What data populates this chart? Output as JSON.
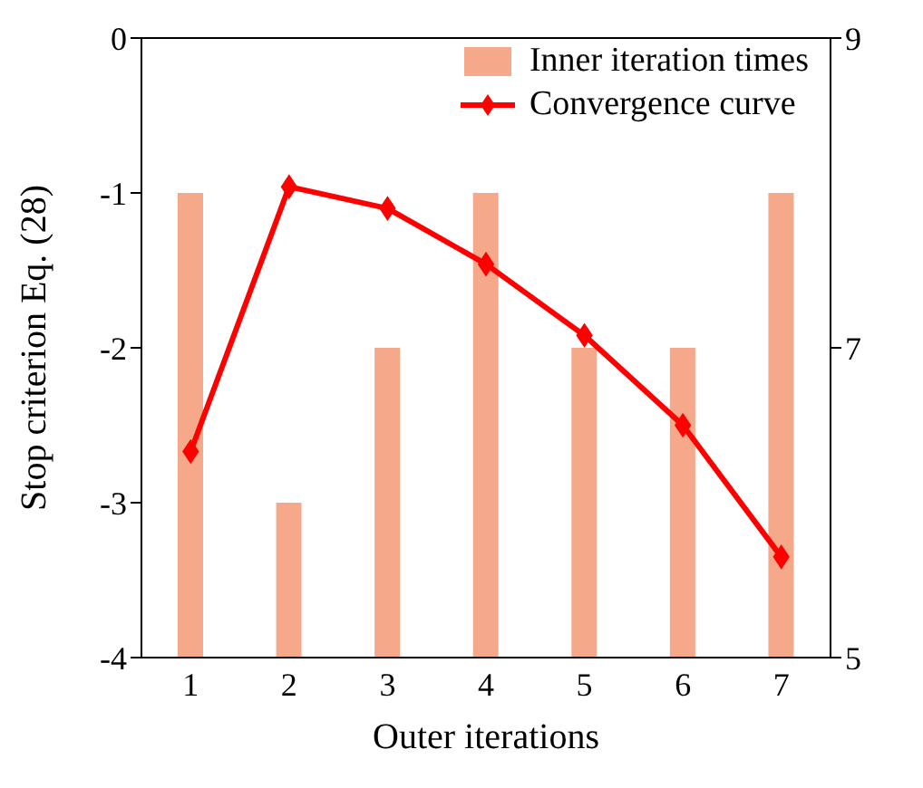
{
  "chart_data": {
    "type": "bar",
    "xlabel": "Outer iterations",
    "ylabel": "Stop criterion Eq. (28)",
    "categories": [
      "1",
      "2",
      "3",
      "4",
      "5",
      "6",
      "7"
    ],
    "series": [
      {
        "name": "Inner iteration times",
        "axis": "y2",
        "color": "#f5a88a",
        "values": [
          8,
          6,
          7,
          8,
          7,
          7,
          8
        ]
      },
      {
        "name": "Convergence curve",
        "type": "line",
        "color": "#ff0000",
        "values": [
          -2.67,
          -0.96,
          -1.1,
          -1.46,
          -1.92,
          -2.5,
          -3.35
        ]
      }
    ],
    "ylim": [
      -4,
      0
    ],
    "yticks": [
      -4,
      -3,
      -2,
      -1,
      0
    ],
    "y2lim": [
      5,
      9
    ],
    "y2ticks": [
      5,
      7,
      9
    ],
    "legend": "top right",
    "marker": "diamond",
    "line_style": "solid",
    "grid": false
  }
}
